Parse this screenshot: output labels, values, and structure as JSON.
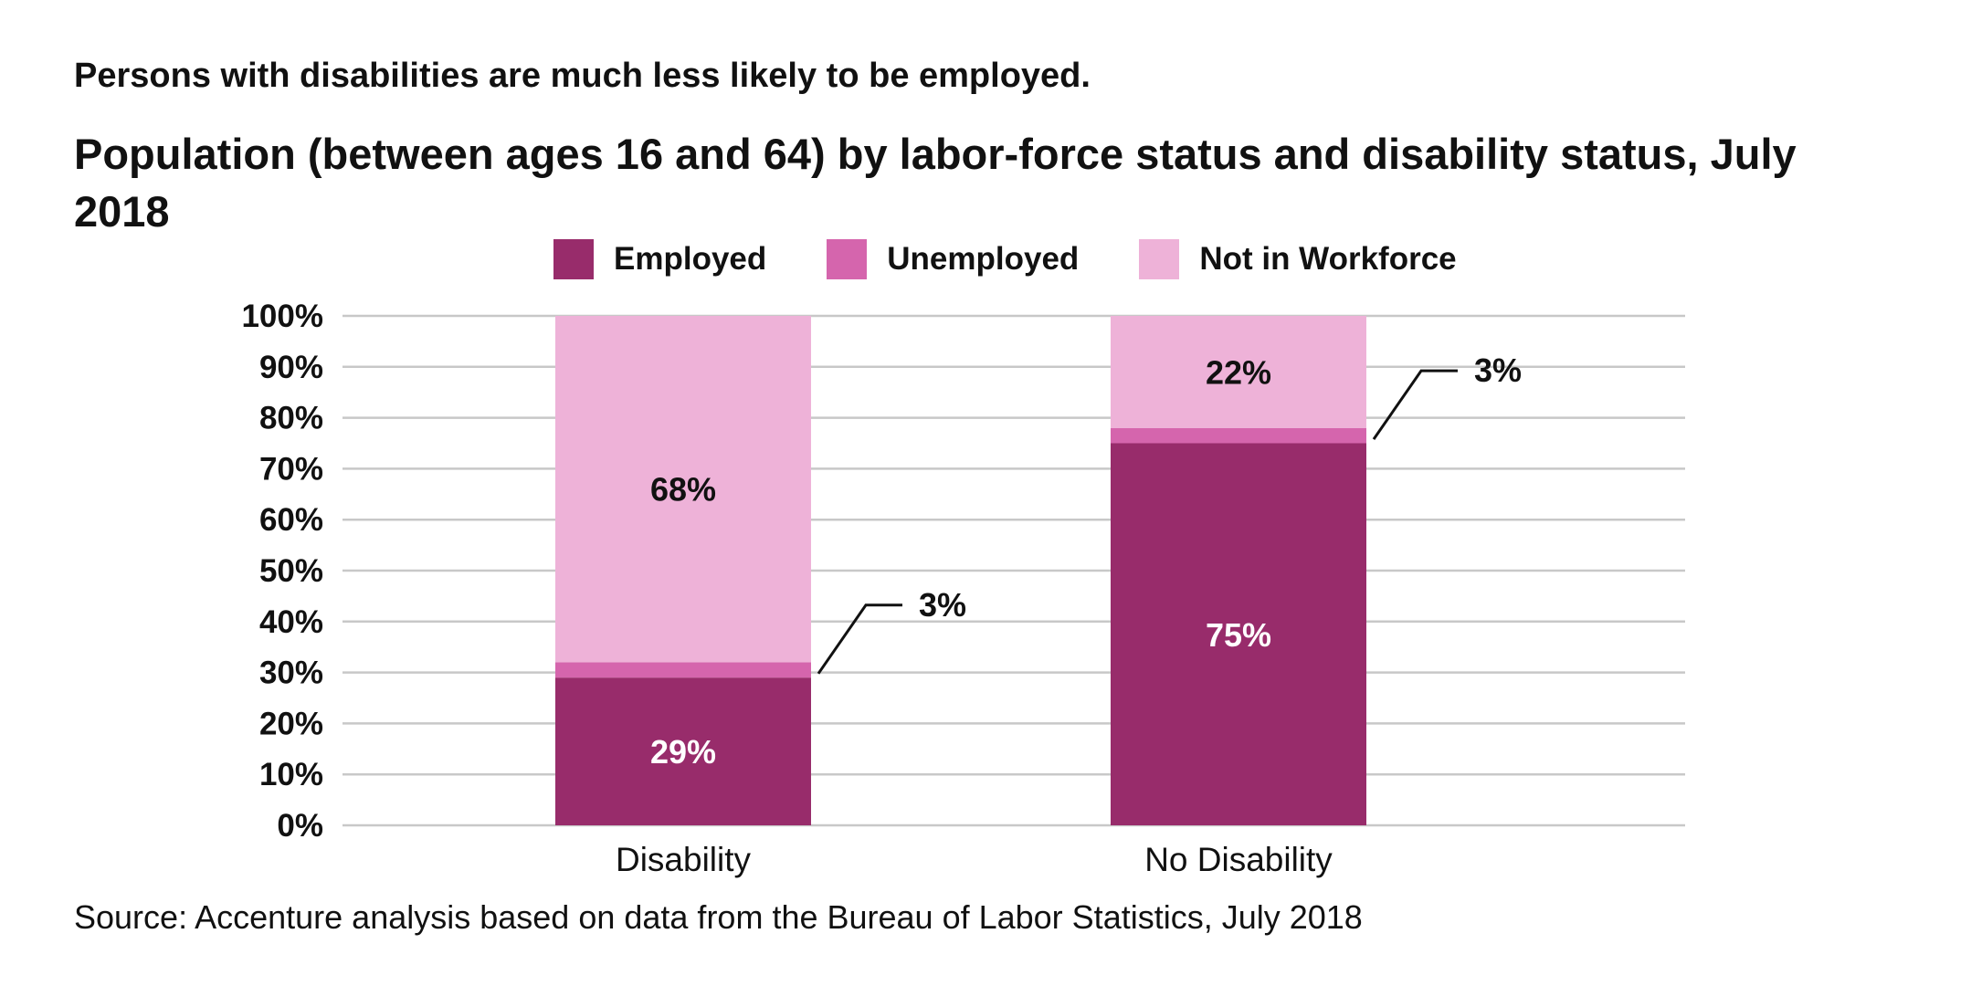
{
  "chart_data": {
    "type": "bar",
    "stacked": true,
    "subtitle": "Persons with disabilities are much less likely to be employed.",
    "title": "Population (between ages 16 and 64) by labor-force status and disability status, July 2018",
    "source": "Source: Accenture analysis based on data from the Bureau of Labor Statistics, July 2018",
    "categories": [
      "Disability",
      "No Disability"
    ],
    "series": [
      {
        "name": "Employed",
        "values": [
          29,
          75
        ],
        "color": "#982C6B",
        "labels": [
          "29%",
          "75%"
        ],
        "label_color": "#ffffff"
      },
      {
        "name": "Unemployed",
        "values": [
          3,
          3
        ],
        "color": "#D565AD",
        "labels": [
          "3%",
          "3%"
        ],
        "label_color": "#111111",
        "callout": true
      },
      {
        "name": "Not in Workforce",
        "values": [
          68,
          22
        ],
        "color": "#EEB2D8",
        "labels": [
          "68%",
          "22%"
        ],
        "label_color": "#111111"
      }
    ],
    "ylim": [
      0,
      100
    ],
    "yticks": [
      "0%",
      "10%",
      "20%",
      "30%",
      "40%",
      "50%",
      "60%",
      "70%",
      "80%",
      "90%",
      "100%"
    ],
    "grid": true,
    "legend_position": "top-center"
  }
}
